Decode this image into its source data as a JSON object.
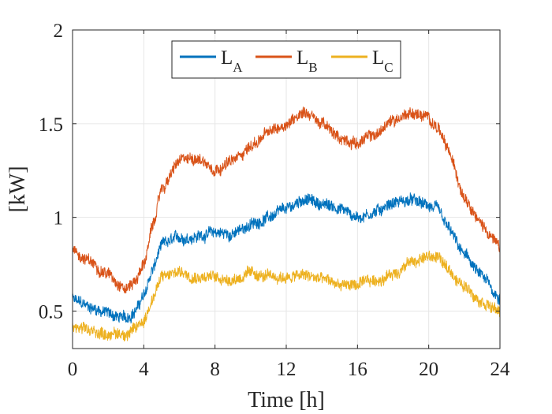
{
  "chart_data": {
    "type": "line",
    "title": "",
    "xlabel": "Time [h]",
    "ylabel": "[kW]",
    "xlim": [
      0,
      24
    ],
    "ylim": [
      0.3,
      2
    ],
    "xticks": [
      0,
      4,
      8,
      12,
      16,
      20,
      24
    ],
    "yticks": [
      0.5,
      1,
      1.5,
      2
    ],
    "ytick_labels": [
      "0.5",
      "1",
      "1.5",
      "2"
    ],
    "grid": true,
    "legend_position": "top-center",
    "noise_amplitude": 0.035,
    "series": [
      {
        "name": "L",
        "subscript": "A",
        "color": "#0072BD",
        "x": [
          0,
          1,
          2,
          2.5,
          3,
          3.5,
          4,
          4.5,
          5,
          6,
          7,
          8,
          9,
          10,
          11,
          12,
          13,
          14,
          15,
          16,
          17,
          18,
          19,
          20,
          20.5,
          21,
          22,
          23,
          24
        ],
        "y": [
          0.56,
          0.52,
          0.49,
          0.47,
          0.46,
          0.5,
          0.58,
          0.72,
          0.85,
          0.89,
          0.9,
          0.92,
          0.91,
          0.96,
          1.0,
          1.04,
          1.1,
          1.07,
          1.05,
          1.0,
          1.03,
          1.08,
          1.09,
          1.06,
          1.04,
          0.95,
          0.8,
          0.68,
          0.57
        ]
      },
      {
        "name": "L",
        "subscript": "B",
        "color": "#D95319",
        "x": [
          0,
          1,
          2,
          2.5,
          3,
          3.5,
          4,
          4.5,
          5,
          6,
          7,
          8,
          9,
          10,
          11,
          12,
          13,
          14,
          15,
          16,
          17,
          18,
          19,
          20,
          20.5,
          21,
          22,
          23,
          24
        ],
        "y": [
          0.82,
          0.76,
          0.7,
          0.66,
          0.62,
          0.66,
          0.75,
          0.95,
          1.15,
          1.3,
          1.32,
          1.26,
          1.3,
          1.38,
          1.45,
          1.5,
          1.57,
          1.5,
          1.42,
          1.4,
          1.44,
          1.52,
          1.56,
          1.53,
          1.48,
          1.37,
          1.12,
          0.96,
          0.84
        ]
      },
      {
        "name": "L",
        "subscript": "C",
        "color": "#EDB120",
        "x": [
          0,
          1,
          2,
          2.5,
          3,
          3.5,
          4,
          4.5,
          5,
          6,
          7,
          8,
          9,
          10,
          11,
          12,
          13,
          14,
          15,
          16,
          17,
          18,
          19,
          20,
          20.5,
          21,
          22,
          23,
          24
        ],
        "y": [
          0.41,
          0.39,
          0.38,
          0.38,
          0.38,
          0.4,
          0.45,
          0.57,
          0.68,
          0.71,
          0.69,
          0.68,
          0.67,
          0.7,
          0.68,
          0.68,
          0.69,
          0.67,
          0.64,
          0.64,
          0.66,
          0.7,
          0.76,
          0.79,
          0.79,
          0.73,
          0.63,
          0.56,
          0.49
        ]
      }
    ]
  }
}
